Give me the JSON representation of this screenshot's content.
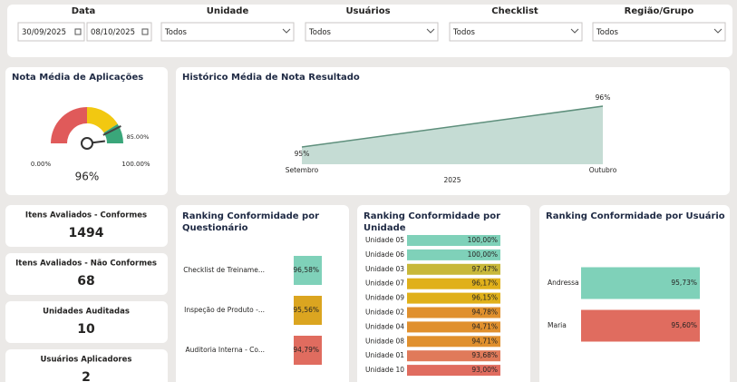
{
  "filters": [
    {
      "label": "Data",
      "values": [
        "30/09/2025",
        "08/10/2025"
      ]
    },
    {
      "label": "Unidade",
      "values": [
        "Todos"
      ]
    },
    {
      "label": "Usuários",
      "values": [
        "Todos"
      ]
    },
    {
      "label": "Checklist",
      "values": [
        "Todos"
      ]
    },
    {
      "label": "Região/Grupo",
      "values": [
        "Todos"
      ]
    }
  ],
  "kpis": [
    {
      "label": "Itens Avaliados - Conformes",
      "value": "1494"
    },
    {
      "label": "Itens Avaliados - Não Conformes",
      "value": "68"
    },
    {
      "label": "Unidades Auditadas",
      "value": "10"
    },
    {
      "label": "Usuários Aplicadores",
      "value": "2"
    }
  ],
  "chart_data": [
    {
      "type": "gauge",
      "title": "Nota Média de Aplicações",
      "value": 96,
      "value_label": "96%",
      "min": {
        "value": 0,
        "label": "0.00%"
      },
      "max": {
        "value": 100,
        "label": "100.00%"
      },
      "target": {
        "value": 85,
        "label": "85.00%"
      },
      "bands": [
        {
          "to": 50,
          "color": "#e05a5a"
        },
        {
          "to": 82,
          "color": "#f2c811"
        },
        {
          "to": 100,
          "color": "#3aa67a"
        }
      ]
    },
    {
      "type": "area",
      "title": "Histórico Média de Nota Resultado",
      "x_label": "2025",
      "categories": [
        "Setembro",
        "Outubro"
      ],
      "values": [
        95,
        96
      ],
      "value_labels": [
        "95%",
        "96%"
      ],
      "color": "#5e8f7c",
      "fill": "#c5dcd4"
    }
  ],
  "tables": [
    {
      "title": "Ranking Conformidade por Questionário",
      "rows": [
        {
          "label": "Checklist de Treiname...",
          "value": "96,58%",
          "color": "#7fd1b9"
        },
        {
          "label": "Inspeção de Produto -...",
          "value": "95,56%",
          "color": "#dba520"
        },
        {
          "label": "Auditoria Interna - Co...",
          "value": "94,79%",
          "color": "#e06c5f"
        }
      ]
    },
    {
      "title": "Ranking Conformidade por Unidade",
      "rows": [
        {
          "label": "Unidade 05",
          "value": "100,00%",
          "color": "#7fd1b9"
        },
        {
          "label": "Unidade 06",
          "value": "100,00%",
          "color": "#7fd1b9"
        },
        {
          "label": "Unidade 03",
          "value": "97,47%",
          "color": "#c8b83a"
        },
        {
          "label": "Unidade 07",
          "value": "96,17%",
          "color": "#e0b01a"
        },
        {
          "label": "Unidade 09",
          "value": "96,15%",
          "color": "#e0b01a"
        },
        {
          "label": "Unidade 02",
          "value": "94,78%",
          "color": "#e0902e"
        },
        {
          "label": "Unidade 04",
          "value": "94,71%",
          "color": "#e0902e"
        },
        {
          "label": "Unidade 08",
          "value": "94,71%",
          "color": "#e0902e"
        },
        {
          "label": "Unidade 01",
          "value": "93,68%",
          "color": "#e07a5a"
        },
        {
          "label": "Unidade 10",
          "value": "93,00%",
          "color": "#e06c5f"
        }
      ]
    },
    {
      "title": "Ranking Conformidade por Usuário",
      "rows": [
        {
          "label": "Andressa",
          "value": "95,73%",
          "color": "#7fd1b9"
        },
        {
          "label": "Maria",
          "value": "95,60%",
          "color": "#e06c5f"
        }
      ]
    }
  ]
}
